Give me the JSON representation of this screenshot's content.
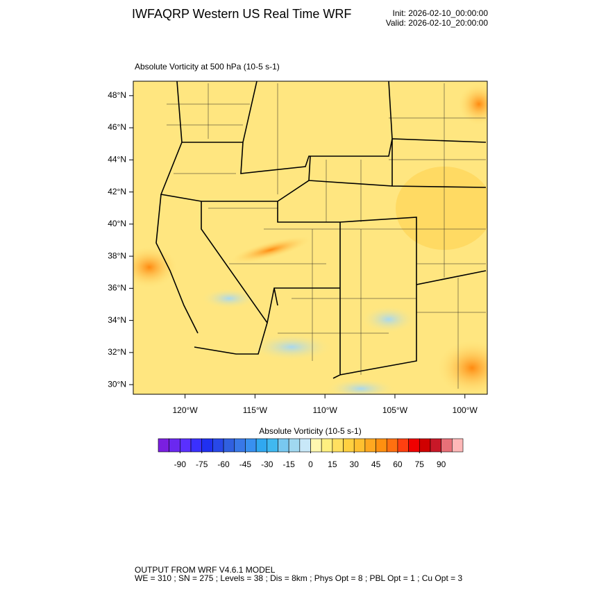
{
  "chart_data": {
    "type": "map",
    "title": "IWFAQRP Western US Real Time WRF",
    "init": "Init: 2026-02-10_00:00:00",
    "valid": "Valid: 2026-02-10_20:00:00",
    "subtitle": "Absolute Vorticity at 500 hPa   (10-5 s-1)",
    "xlim": [
      -123.7,
      -98.4
    ],
    "ylim": [
      29.4,
      48.9
    ],
    "xticks": [
      {
        "value": -120,
        "label": "120°W"
      },
      {
        "value": -115,
        "label": "115°W"
      },
      {
        "value": -110,
        "label": "110°W"
      },
      {
        "value": -105,
        "label": "105°W"
      },
      {
        "value": -100,
        "label": "100°W"
      }
    ],
    "yticks": [
      {
        "value": 30,
        "label": "30°N"
      },
      {
        "value": 32,
        "label": "32°N"
      },
      {
        "value": 34,
        "label": "34°N"
      },
      {
        "value": 36,
        "label": "36°N"
      },
      {
        "value": 38,
        "label": "38°N"
      },
      {
        "value": 40,
        "label": "40°N"
      },
      {
        "value": 42,
        "label": "42°N"
      },
      {
        "value": 44,
        "label": "44°N"
      },
      {
        "value": 46,
        "label": "46°N"
      },
      {
        "value": 48,
        "label": "48°N"
      }
    ],
    "colorbar": {
      "title": "Absolute Vorticity  (10-5 s-1)",
      "range": [
        -105,
        105
      ],
      "colors": [
        "#7a1fe0",
        "#6a28f0",
        "#5a30ff",
        "#3a30ff",
        "#2030f0",
        "#2848e8",
        "#3060e0",
        "#3878e8",
        "#3890f0",
        "#30a8f0",
        "#40b8f0",
        "#78c8f0",
        "#a0d8f0",
        "#c8e8f8",
        "#fff8b0",
        "#fff080",
        "#ffe060",
        "#ffd040",
        "#ffc030",
        "#ffa820",
        "#ff9010",
        "#ff7010",
        "#ff4010",
        "#f00000",
        "#d00000",
        "#c81828",
        "#e87078",
        "#ffb8b8"
      ],
      "ticks": [
        -90,
        -75,
        -60,
        -45,
        -30,
        -15,
        0,
        15,
        30,
        45,
        60,
        75,
        90
      ]
    },
    "footer": [
      "OUTPUT FROM WRF V4.6.1 MODEL",
      "WE = 310 ; SN = 275 ; Levels = 38 ; Dis = 8km ; Phys Opt = 8 ; PBL Opt = 1 ; Cu Opt = 3"
    ]
  }
}
